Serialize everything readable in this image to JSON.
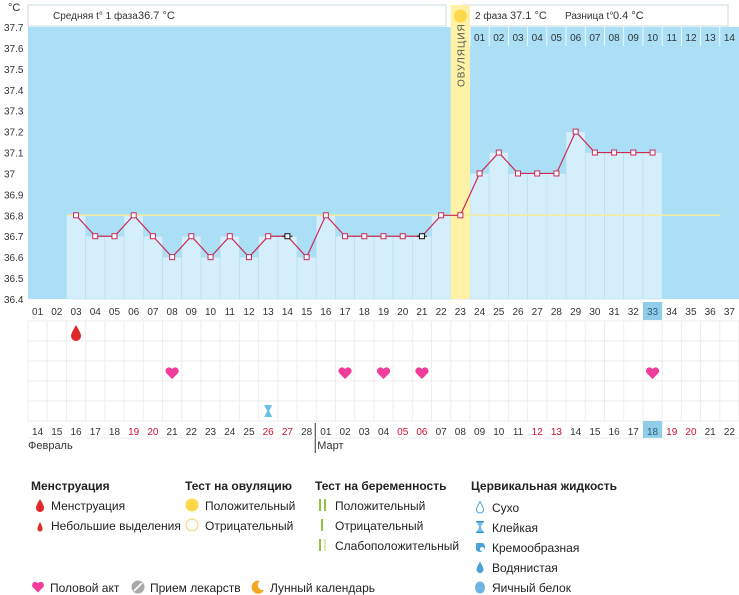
{
  "chart_data": {
    "type": "line",
    "y_unit": "°C",
    "y_ticks": [
      36.4,
      36.5,
      36.6,
      36.7,
      36.8,
      36.9,
      37.0,
      37.1,
      37.2,
      37.3,
      37.4,
      37.5,
      37.6,
      37.7
    ],
    "y_tick_labels": [
      "36.4",
      "36.5",
      "36.6",
      "36.7",
      "36.8",
      "36.9",
      "37",
      "37.1",
      "37.2",
      "37.3",
      "37.4",
      "37.5",
      "37.6",
      "37.7"
    ],
    "ylim": [
      36.4,
      37.7
    ],
    "cycle_days": [
      "01",
      "02",
      "03",
      "04",
      "05",
      "06",
      "07",
      "08",
      "09",
      "10",
      "11",
      "12",
      "13",
      "14",
      "15",
      "16",
      "17",
      "18",
      "19",
      "20",
      "21",
      "22",
      "23",
      "24",
      "25",
      "26",
      "27",
      "28",
      "29",
      "30",
      "31",
      "32",
      "33",
      "34",
      "35",
      "36",
      "37"
    ],
    "top_phase2_days": [
      "01",
      "02",
      "03",
      "04",
      "05",
      "06",
      "07",
      "08",
      "09",
      "10",
      "11",
      "12",
      "13",
      "14"
    ],
    "temperatures": [
      null,
      null,
      36.8,
      36.7,
      36.7,
      36.8,
      36.7,
      36.6,
      36.7,
      36.6,
      36.7,
      36.6,
      36.7,
      36.7,
      36.6,
      36.8,
      36.7,
      36.7,
      36.7,
      36.7,
      36.7,
      36.8,
      36.8,
      37.0,
      37.1,
      37.0,
      37.0,
      37.0,
      37.2,
      37.1,
      37.1,
      37.1,
      37.1,
      null,
      null,
      null,
      null
    ],
    "excluded_days": [
      14,
      21
    ],
    "coverline": 36.8,
    "ovulation_day": 23,
    "current_day": 33,
    "ovulation_label": "ОВУЛЯЦИЯ",
    "phase1_text": "Средняя t° 1 фаза",
    "phase1_value": "36.7 °C",
    "phase2_text": "2 фаза",
    "phase2_value": "37.1 °C",
    "diff_text": "Разница t°",
    "diff_value": "0.4 °C",
    "dates": [
      "14",
      "15",
      "16",
      "17",
      "18",
      "19",
      "20",
      "21",
      "22",
      "23",
      "24",
      "25",
      "26",
      "27",
      "28",
      "01",
      "02",
      "03",
      "04",
      "05",
      "06",
      "07",
      "08",
      "09",
      "10",
      "11",
      "12",
      "13",
      "14",
      "15",
      "16",
      "17",
      "18",
      "19",
      "20",
      "21",
      "22"
    ],
    "red_dates_idx": [
      5,
      6,
      12,
      13,
      19,
      20,
      26,
      27,
      33,
      34
    ],
    "months": [
      {
        "label": "Февраль",
        "start": 0
      },
      {
        "label": "Март",
        "start": 15
      }
    ],
    "menstruation_days": [
      3
    ],
    "intercourse_days": [
      8,
      17,
      19,
      21,
      33
    ],
    "sticky_days": [
      13
    ]
  },
  "colors": {
    "plot_bg": "#aadff6",
    "bar": "#d4effb",
    "bar_edge": "#b3dcef",
    "line": "#cc2a55",
    "ovulation": "#fff2a6",
    "coverline": "#f3ec9c",
    "current": "#8fcde9",
    "red_date": "#cc1133",
    "heart": "#f03c9a",
    "drop": "#e02a2a",
    "sun": "#fdd84a"
  },
  "legend": {
    "menstruation": {
      "title": "Менструация",
      "items": [
        "Менструация",
        "Небольшие выделения"
      ]
    },
    "ovulation_test": {
      "title": "Тест на овуляцию",
      "items": [
        "Положительный",
        "Отрицательный"
      ]
    },
    "pregnancy_test": {
      "title": "Тест на беременность",
      "items": [
        "Положительный",
        "Отрицательный",
        "Слабоположительный"
      ]
    },
    "cervical": {
      "title": "Цервикальная жидкость",
      "items": [
        "Сухо",
        "Клейкая",
        "Кремообразная",
        "Водянистая",
        "Яичный белок"
      ]
    },
    "bottom": [
      "Половой акт",
      "Прием лекарств",
      "Лунный календарь"
    ]
  }
}
